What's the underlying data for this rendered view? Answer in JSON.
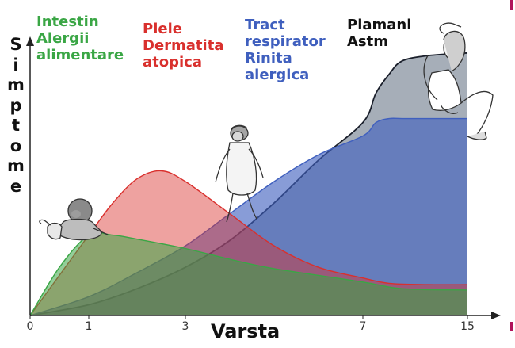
{
  "chart_data": {
    "type": "area",
    "xlabel": "Varsta",
    "ylabel": "Simptome",
    "x_ticks": [
      "0",
      "1",
      "3",
      "7",
      "15"
    ],
    "y_range": [
      0,
      1
    ],
    "grid": false,
    "series": [
      {
        "name": "Intestin Alergii alimentare",
        "name_lines": [
          "Intestin",
          "Alergii",
          "alimentare"
        ],
        "color": "#3aa645",
        "x": [
          0,
          0.5,
          1,
          1.5,
          2,
          3,
          4,
          5,
          7,
          10,
          15
        ],
        "y": [
          0,
          0.18,
          0.3,
          0.3,
          0.285,
          0.25,
          0.21,
          0.175,
          0.125,
          0.1,
          0.095
        ]
      },
      {
        "name": "Piele Dermatita atopica",
        "name_lines": [
          "Piele",
          "Dermatita",
          "atopica"
        ],
        "color": "#d9302d",
        "x": [
          0,
          0.5,
          1,
          1.5,
          2,
          2.5,
          3,
          4,
          5,
          6,
          7,
          9,
          12,
          15
        ],
        "y": [
          0,
          0.15,
          0.3,
          0.42,
          0.51,
          0.54,
          0.5,
          0.38,
          0.26,
          0.18,
          0.14,
          0.12,
          0.115,
          0.115
        ]
      },
      {
        "name": "Tract respirator Rinita alergica",
        "name_lines": [
          "Tract",
          "respirator",
          "Rinita",
          "alergica"
        ],
        "color": "#3f5fbe",
        "x": [
          0,
          1,
          2,
          3,
          4,
          5,
          6,
          7,
          8,
          9,
          10,
          12,
          15
        ],
        "y": [
          0,
          0.07,
          0.16,
          0.26,
          0.38,
          0.5,
          0.6,
          0.67,
          0.72,
          0.735,
          0.735,
          0.735,
          0.735
        ]
      },
      {
        "name": "Plamani Astm",
        "name_lines": [
          "Plamani",
          "Astm"
        ],
        "color": "#5d6b7e",
        "x": [
          0,
          1,
          2,
          3,
          4,
          5,
          6,
          7,
          8,
          9,
          10,
          12,
          15
        ],
        "y": [
          0,
          0.04,
          0.1,
          0.18,
          0.28,
          0.42,
          0.58,
          0.72,
          0.83,
          0.9,
          0.95,
          0.97,
          0.98
        ]
      }
    ]
  },
  "colors": {
    "intestin": "#3aa645",
    "piele": "#d9302d",
    "respirator": "#3f5fbe",
    "plamani": "#111111",
    "accent": "#b0135a"
  },
  "icons": [
    "baby-illustration",
    "toddler-illustration",
    "woman-illustration"
  ]
}
